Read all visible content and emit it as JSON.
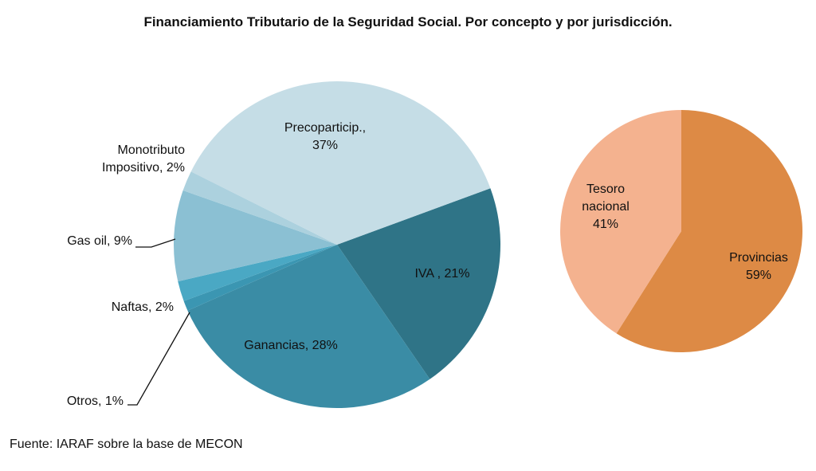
{
  "chart_data": [
    {
      "type": "pie",
      "title": "Financiamiento Tributario de la Seguridad Social. Por concepto y por jurisdicción.",
      "slices": [
        {
          "label": "IVA",
          "value_label": "IVA , 21%",
          "value": 21,
          "color": "#2f7487"
        },
        {
          "label": "Ganancias",
          "value_label": "Ganancias, 28%",
          "value": 28,
          "color": "#3a8ca5"
        },
        {
          "label": "Otros",
          "value_label": "Otros, 1%",
          "value": 1,
          "color": "#3b96b2"
        },
        {
          "label": "Naftas",
          "value_label": "Naftas, 2%",
          "value": 2,
          "color": "#4aa8c4"
        },
        {
          "label": "Gas oil",
          "value_label": "Gas oil, 9%",
          "value": 9,
          "color": "#8bc0d3"
        },
        {
          "label": "Monotributo Impositivo",
          "value_label": "Monotributo\nImpositivo, 2%",
          "value": 2,
          "color": "#acd1de"
        },
        {
          "label": "Precoparticip.",
          "value_label": "Precoparticip.,\n37%",
          "value": 37,
          "color": "#c5dde6"
        }
      ]
    },
    {
      "type": "pie",
      "slices": [
        {
          "label": "Provincias",
          "value_label": "Provincias\n59%",
          "value": 59,
          "color": "#dd8a45"
        },
        {
          "label": "Tesoro nacional",
          "value_label": "Tesoro\nnacional\n41%",
          "value": 41,
          "color": "#f4b28f"
        }
      ]
    }
  ],
  "source": "Fuente: IARAF sobre la base de MECON"
}
